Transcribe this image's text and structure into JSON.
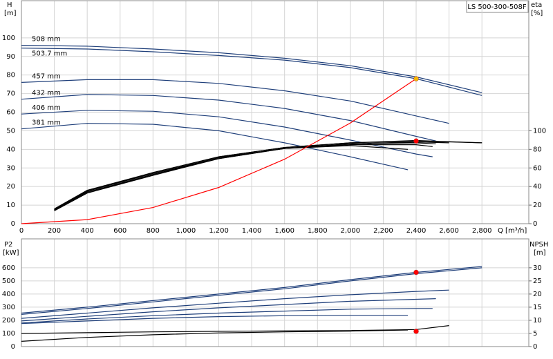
{
  "chart_data": [
    {
      "type": "line",
      "title": "LS 500-300-508F",
      "ylabel": "H",
      "ylabel_unit": "[m]",
      "y2label": "eta",
      "y2label_unit": "[%]",
      "xlabel": "Q [m³/h]",
      "xlim": [
        0,
        3085
      ],
      "ylim": [
        0,
        120
      ],
      "y2lim": [
        0,
        240
      ],
      "grid": true,
      "xticks": [
        0,
        200,
        400,
        600,
        800,
        {
          "value": 1000,
          "label": "1,000"
        },
        {
          "value": 1200,
          "label": "1,200"
        },
        {
          "value": 1400,
          "label": "1,400"
        },
        {
          "value": 1600,
          "label": "1,600"
        },
        {
          "value": 1800,
          "label": "1,800"
        },
        {
          "value": 2000,
          "label": "2,000"
        },
        {
          "value": 2200,
          "label": "2,200"
        },
        {
          "value": 2400,
          "label": "2,400"
        },
        {
          "value": 2600,
          "label": "2,600"
        },
        {
          "value": 2800,
          "label": "2,800"
        }
      ],
      "yticks": [
        0,
        10,
        20,
        30,
        40,
        50,
        60,
        70,
        80,
        90,
        100
      ],
      "y2ticks": [
        0,
        20,
        40,
        60,
        80,
        100
      ],
      "series": [
        {
          "name": "508 mm",
          "color": "#1f3f7a",
          "axis": "y",
          "x": [
            0,
            400,
            800,
            1200,
            1600,
            2000,
            2400,
            2800
          ],
          "values": [
            96,
            95.5,
            94,
            92,
            89,
            85,
            79,
            70.5
          ]
        },
        {
          "name": "503.7 mm",
          "color": "#1f3f7a",
          "axis": "y",
          "x": [
            0,
            400,
            800,
            1200,
            1600,
            2000,
            2400,
            2800
          ],
          "values": [
            94.5,
            94,
            92.5,
            90.5,
            88,
            84,
            78,
            69
          ]
        },
        {
          "name": "457 mm",
          "color": "#1f3f7a",
          "axis": "y",
          "x": [
            0,
            400,
            800,
            1200,
            1600,
            2000,
            2400,
            2600
          ],
          "values": [
            76,
            77.5,
            77.5,
            75.5,
            71.5,
            66,
            58,
            54
          ]
        },
        {
          "name": "432 mm",
          "color": "#1f3f7a",
          "axis": "y",
          "x": [
            0,
            400,
            800,
            1200,
            1600,
            2000,
            2400,
            2520
          ],
          "values": [
            67,
            69.5,
            69,
            66.5,
            62,
            55.5,
            47,
            44.5
          ]
        },
        {
          "name": "406 mm",
          "color": "#1f3f7a",
          "axis": "y",
          "x": [
            0,
            400,
            800,
            1200,
            1600,
            2000,
            2400,
            2500
          ],
          "values": [
            59,
            61,
            60.5,
            57.5,
            52,
            45,
            37.5,
            36
          ]
        },
        {
          "name": "381 mm",
          "color": "#1f3f7a",
          "axis": "y",
          "x": [
            0,
            400,
            800,
            1200,
            1600,
            2000,
            2350
          ],
          "values": [
            51,
            54,
            53.5,
            50,
            43.5,
            36,
            29
          ]
        },
        {
          "color": "#000000",
          "axis": "y2",
          "x": [
            200,
            400,
            800,
            1200,
            1600,
            2000,
            2400,
            2800
          ],
          "values": [
            16,
            36,
            55,
            72,
            82,
            87,
            89.5,
            87
          ]
        },
        {
          "color": "#000000",
          "axis": "y2",
          "x": [
            200,
            400,
            800,
            1200,
            1600,
            2000,
            2400,
            2800
          ],
          "values": [
            15,
            35,
            55,
            72,
            82,
            87,
            89,
            87
          ]
        },
        {
          "color": "#000000",
          "axis": "y2",
          "x": [
            200,
            400,
            800,
            1200,
            1600,
            2000,
            2400,
            2600
          ],
          "values": [
            15,
            35,
            54,
            71,
            81,
            86,
            88,
            87
          ]
        },
        {
          "color": "#000000",
          "axis": "y2",
          "x": [
            200,
            400,
            800,
            1200,
            1600,
            2000,
            2400,
            2520
          ],
          "values": [
            15,
            34,
            53,
            71,
            81,
            86,
            87,
            86
          ]
        },
        {
          "color": "#000000",
          "axis": "y2",
          "x": [
            200,
            400,
            800,
            1200,
            1600,
            2000,
            2400,
            2500
          ],
          "values": [
            14,
            33,
            53,
            70,
            81,
            85,
            85,
            83
          ]
        },
        {
          "color": "#000000",
          "axis": "y2",
          "x": [
            200,
            400,
            800,
            1200,
            1600,
            2000,
            2350
          ],
          "values": [
            14,
            33,
            52,
            70,
            81,
            84,
            80
          ]
        },
        {
          "color": "#ff0000",
          "axis": "y",
          "x": [
            0,
            400,
            800,
            1200,
            1600,
            2000,
            2400
          ],
          "values": [
            0,
            2.2,
            8.7,
            19.5,
            34.7,
            54.2,
            78
          ]
        }
      ],
      "points": [
        {
          "x": 2400,
          "y": 78,
          "color": "#f5b800",
          "axis": "y"
        },
        {
          "x": 2400,
          "y": 89,
          "color": "#ff0000",
          "axis": "y2"
        }
      ]
    },
    {
      "type": "line",
      "ylabel": "P2",
      "ylabel_unit": "[kW]",
      "y2label": "NPSH",
      "y2label_unit": "[m]",
      "xlim": [
        0,
        3085
      ],
      "ylim": [
        0,
        820
      ],
      "y2lim": [
        0,
        41
      ],
      "grid": true,
      "xticks": [
        0,
        200,
        400,
        600,
        800,
        1000,
        1200,
        1400,
        1600,
        1800,
        2000,
        2200,
        2400,
        2600,
        2800
      ],
      "yticks": [
        0,
        100,
        200,
        300,
        400,
        500,
        600
      ],
      "y2ticks": [
        0,
        5,
        10,
        15,
        20,
        25,
        30
      ],
      "series": [
        {
          "color": "#1f3f7a",
          "axis": "y",
          "x": [
            0,
            400,
            800,
            1200,
            1600,
            2000,
            2400,
            2800
          ],
          "values": [
            255,
            300,
            350,
            400,
            450,
            510,
            565,
            610
          ]
        },
        {
          "color": "#1f3f7a",
          "axis": "y",
          "x": [
            0,
            400,
            800,
            1200,
            1600,
            2000,
            2400,
            2800
          ],
          "values": [
            245,
            290,
            340,
            390,
            440,
            500,
            555,
            600
          ]
        },
        {
          "color": "#1f3f7a",
          "axis": "y",
          "x": [
            0,
            400,
            800,
            1200,
            1600,
            2000,
            2400,
            2600
          ],
          "values": [
            215,
            255,
            295,
            330,
            365,
            395,
            420,
            430
          ]
        },
        {
          "color": "#1f3f7a",
          "axis": "y",
          "x": [
            0,
            400,
            800,
            1200,
            1600,
            2000,
            2400,
            2520
          ],
          "values": [
            195,
            230,
            265,
            295,
            320,
            345,
            360,
            365
          ]
        },
        {
          "color": "#1f3f7a",
          "axis": "y",
          "x": [
            0,
            400,
            800,
            1200,
            1600,
            2000,
            2400,
            2500
          ],
          "values": [
            180,
            210,
            235,
            255,
            270,
            285,
            290,
            290
          ]
        },
        {
          "color": "#1f3f7a",
          "axis": "y",
          "x": [
            0,
            400,
            800,
            1200,
            1600,
            2000,
            2350
          ],
          "values": [
            175,
            195,
            215,
            228,
            235,
            238,
            238
          ]
        },
        {
          "color": "#000000",
          "axis": "y2",
          "x": [
            0,
            400,
            800,
            1200,
            1600,
            2000,
            2400,
            2600
          ],
          "values": [
            5,
            5.3,
            5.6,
            5.8,
            6,
            6.1,
            6.5,
            8
          ]
        },
        {
          "color": "#000000",
          "axis": "y2",
          "x": [
            0,
            400,
            800,
            1200,
            1600,
            2000,
            2350
          ],
          "values": [
            2,
            3.5,
            4.5,
            5.2,
            5.6,
            5.9,
            6.3
          ]
        }
      ],
      "points": [
        {
          "x": 2400,
          "y": 565,
          "color": "#ff0000",
          "axis": "y"
        },
        {
          "x": 2400,
          "y": 5.8,
          "color": "#ff0000",
          "axis": "y2"
        }
      ]
    }
  ]
}
